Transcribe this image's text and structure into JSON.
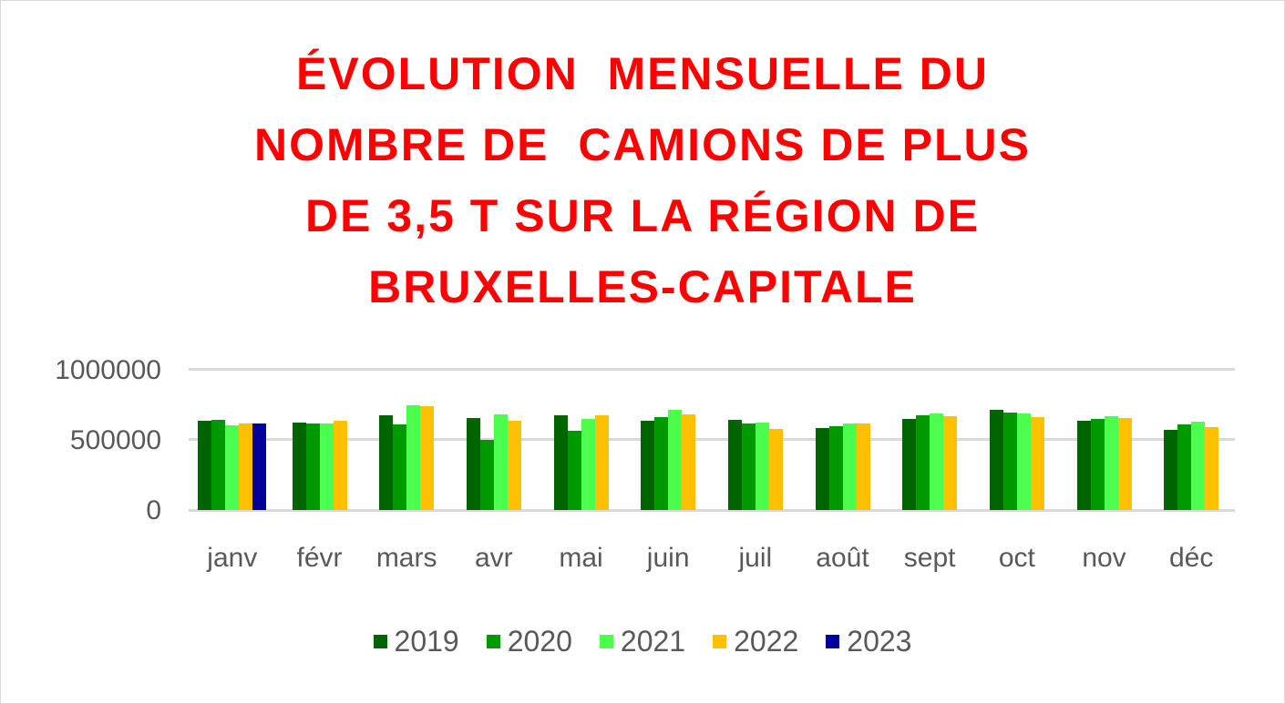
{
  "title_lines": [
    "ÉVOLUTION  MENSUELLE DU",
    "NOMBRE DE  CAMIONS DE PLUS",
    "DE 3,5 T SUR LA RÉGION DE",
    "BRUXELLES-CAPITALE"
  ],
  "y_ticks": [
    "1000000",
    "500000",
    "0"
  ],
  "legend": [
    {
      "label": "2019",
      "color": "#006400"
    },
    {
      "label": "2020",
      "color": "#009900"
    },
    {
      "label": "2021",
      "color": "#4cff4c"
    },
    {
      "label": "2022",
      "color": "#ffc000"
    },
    {
      "label": "2023",
      "color": "#000099"
    }
  ],
  "chart_data": {
    "type": "bar",
    "title": "ÉVOLUTION MENSUELLE DU NOMBRE DE CAMIONS DE PLUS DE 3,5 T SUR LA RÉGION DE BRUXELLES-CAPITALE",
    "xlabel": "",
    "ylabel": "",
    "ylim": [
      0,
      1000000
    ],
    "y_ticks": [
      0,
      500000,
      1000000
    ],
    "grid": true,
    "legend_position": "bottom",
    "categories": [
      "janv",
      "févr",
      "mars",
      "avr",
      "mai",
      "juin",
      "juil",
      "août",
      "sept",
      "oct",
      "nov",
      "déc"
    ],
    "series": [
      {
        "name": "2019",
        "color": "#006400",
        "values": [
          632000,
          619000,
          671000,
          652000,
          671000,
          632000,
          639000,
          581000,
          645000,
          710000,
          632000,
          568000
        ]
      },
      {
        "name": "2020",
        "color": "#009900",
        "values": [
          639000,
          613000,
          606000,
          497000,
          561000,
          658000,
          613000,
          594000,
          671000,
          690000,
          645000,
          606000
        ]
      },
      {
        "name": "2021",
        "color": "#4cff4c",
        "values": [
          600000,
          613000,
          742000,
          677000,
          645000,
          710000,
          619000,
          613000,
          684000,
          684000,
          665000,
          626000
        ]
      },
      {
        "name": "2022",
        "color": "#ffc000",
        "values": [
          613000,
          632000,
          735000,
          632000,
          671000,
          677000,
          574000,
          613000,
          665000,
          658000,
          652000,
          587000
        ]
      },
      {
        "name": "2023",
        "color": "#000099",
        "values": [
          613000,
          null,
          null,
          null,
          null,
          null,
          null,
          null,
          null,
          null,
          null,
          null
        ]
      }
    ]
  }
}
